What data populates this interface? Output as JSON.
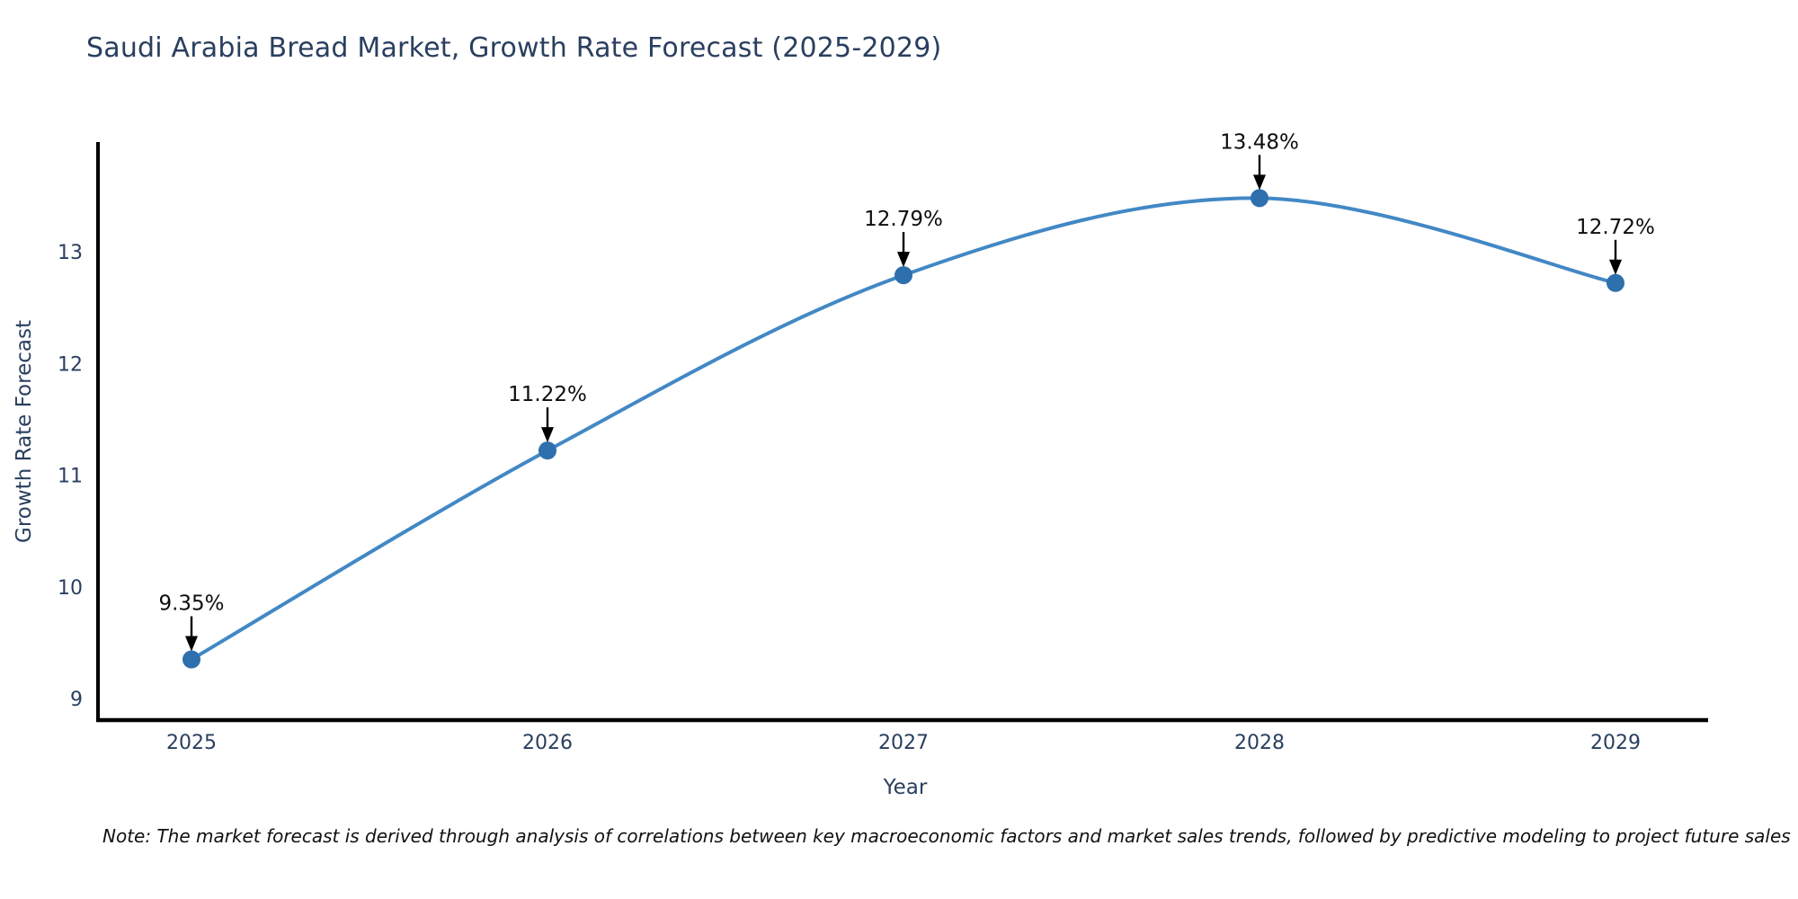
{
  "chart_data": {
    "type": "line",
    "title": "Saudi Arabia Bread Market, Growth Rate Forecast (2025-2029)",
    "xlabel": "Year",
    "ylabel": "Growth Rate Forecast",
    "x": [
      2025,
      2026,
      2027,
      2028,
      2029
    ],
    "y": [
      9.35,
      11.22,
      12.79,
      13.48,
      12.72
    ],
    "point_labels": [
      "9.35%",
      "11.22%",
      "12.79%",
      "13.48%",
      "12.72%"
    ],
    "x_tick_labels": [
      "2025",
      "2026",
      "2027",
      "2028",
      "2029"
    ],
    "y_ticks": [
      9,
      10,
      11,
      12,
      13
    ],
    "ylim": [
      8.81,
      14.05
    ],
    "line_shape": "spline",
    "grid": false,
    "legend_position": "none",
    "colors": {
      "line": "#4288c5",
      "marker": "#2e6fad",
      "axis_spine": "#000000",
      "tick_text": "#2a3f5f",
      "axis_title_text": "#2a3f5f",
      "title_text": "#2a3f5f",
      "annotation_text": "#0d0d0d",
      "annotation_arrow": "#000000"
    }
  },
  "note": "Note: The market forecast is derived through analysis of correlations between key macroeconomic factors and market sales trends, followed by predictive modeling to project future sales"
}
